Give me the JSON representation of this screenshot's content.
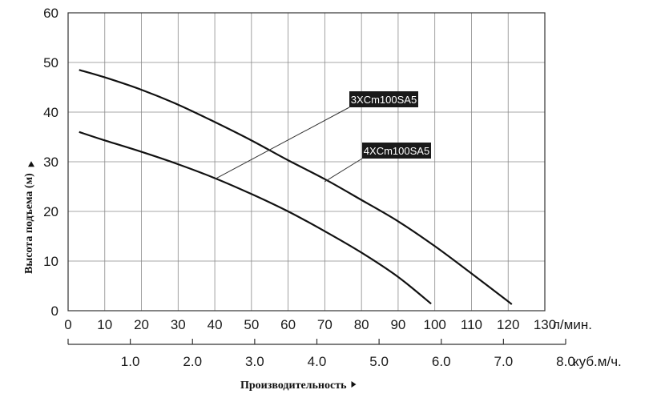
{
  "chart_data": {
    "type": "line",
    "ylabel": "Высота подъема (м)",
    "xlabel": "Производительность",
    "ylim": [
      0,
      60
    ],
    "xlim": [
      0,
      130
    ],
    "grid": true,
    "y_ticks": [
      "0",
      "10",
      "20",
      "30",
      "40",
      "50",
      "60"
    ],
    "x_ticks": [
      "0",
      "10",
      "20",
      "30",
      "40",
      "50",
      "60",
      "70",
      "80",
      "90",
      "100",
      "110",
      "120",
      "130"
    ],
    "x_unit": "л/мин.",
    "x2_ticks": [
      "0",
      "1.0",
      "2.0",
      "3.0",
      "4.0",
      "5.0",
      "6.0",
      "7.0",
      "8.0"
    ],
    "x2_unit": "куб.м/ч.",
    "series": [
      {
        "name": "3XCm100SA5",
        "x": [
          3,
          10,
          20,
          30,
          40,
          50,
          60,
          70,
          80,
          90,
          100,
          110,
          121
        ],
        "y": [
          48.5,
          47.0,
          44.5,
          41.5,
          38.0,
          34.3,
          30.3,
          26.5,
          22.3,
          18.0,
          13.0,
          7.5,
          1.3
        ]
      },
      {
        "name": "4XCm100SA5",
        "x": [
          3,
          10,
          20,
          30,
          40,
          50,
          60,
          70,
          80,
          90,
          99
        ],
        "y": [
          36.0,
          34.3,
          32.0,
          29.5,
          26.7,
          23.5,
          20.0,
          16.0,
          11.7,
          6.8,
          1.4
        ]
      }
    ],
    "series_labels": [
      {
        "text": "3XCm100SA5",
        "anchor_x": 40,
        "anchor_y": 26.5
      },
      {
        "text": "4XCm100SA5",
        "anchor_x": 70,
        "anchor_y": 26.0
      }
    ]
  }
}
